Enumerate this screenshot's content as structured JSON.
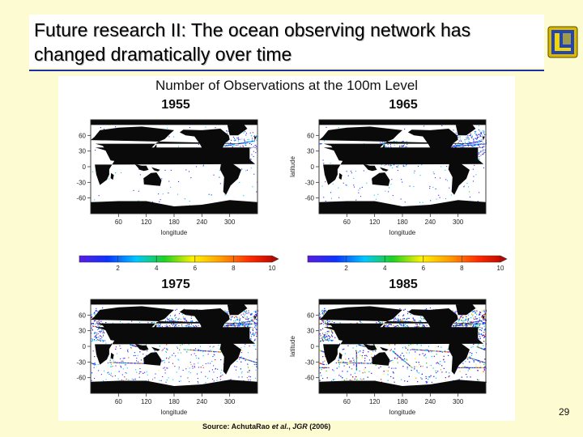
{
  "slide": {
    "title": "Future research II: The ocean observing network has changed dramatically over time",
    "page_number": "29",
    "source_prefix": "Source: AchutaRao",
    "source_etal": "et al.",
    "source_comma": ",",
    "source_journal": "JGR",
    "source_year": "(2006)"
  },
  "figure": {
    "title": "Number of Observations at the 100m Level",
    "panels": [
      {
        "year": "1955",
        "density": "sparse"
      },
      {
        "year": "1965",
        "density": "moderate"
      },
      {
        "year": "1975",
        "density": "dense"
      },
      {
        "year": "1985",
        "density": "very dense"
      }
    ],
    "x_ticks": [
      "60",
      "120",
      "180",
      "240",
      "300"
    ],
    "y_ticks": [
      "60",
      "30",
      "0",
      "-30",
      "-60"
    ],
    "x_label": "longitude",
    "y_label": "latitude",
    "colorbar_ticks": [
      "2",
      "4",
      "6",
      "8",
      "10"
    ],
    "colors": [
      "#5a1ce0",
      "#0b33ff",
      "#00c8ff",
      "#1fd11f",
      "#fff200",
      "#ff9a00",
      "#ff2a00",
      "#b30000"
    ]
  }
}
